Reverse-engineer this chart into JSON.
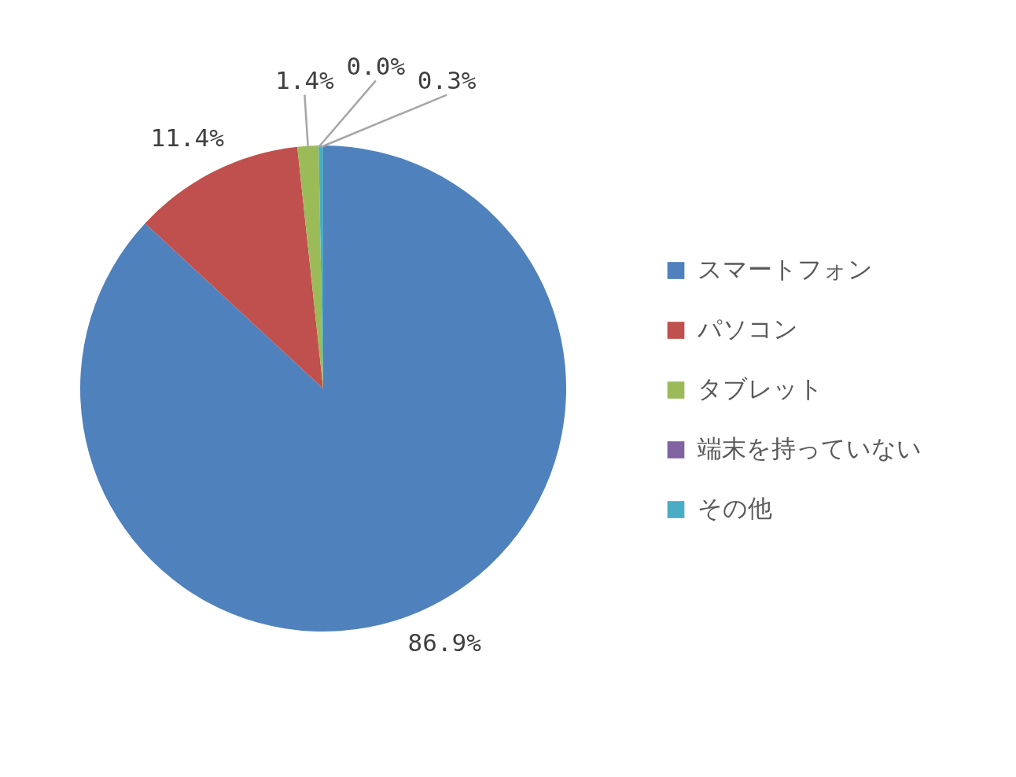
{
  "chart_data": {
    "type": "pie",
    "categories": [
      "スマートフォン",
      "パソコン",
      "タブレット",
      "端末を持っていない",
      "その他"
    ],
    "values": [
      86.9,
      11.4,
      1.4,
      0.0,
      0.3
    ],
    "colors": [
      "#4f81bd",
      "#c0504d",
      "#9bbb59",
      "#8064a2",
      "#4bacc6"
    ],
    "value_labels": [
      "86.9%",
      "11.4%",
      "1.4%",
      "0.0%",
      "0.3%"
    ],
    "legend": "right"
  }
}
